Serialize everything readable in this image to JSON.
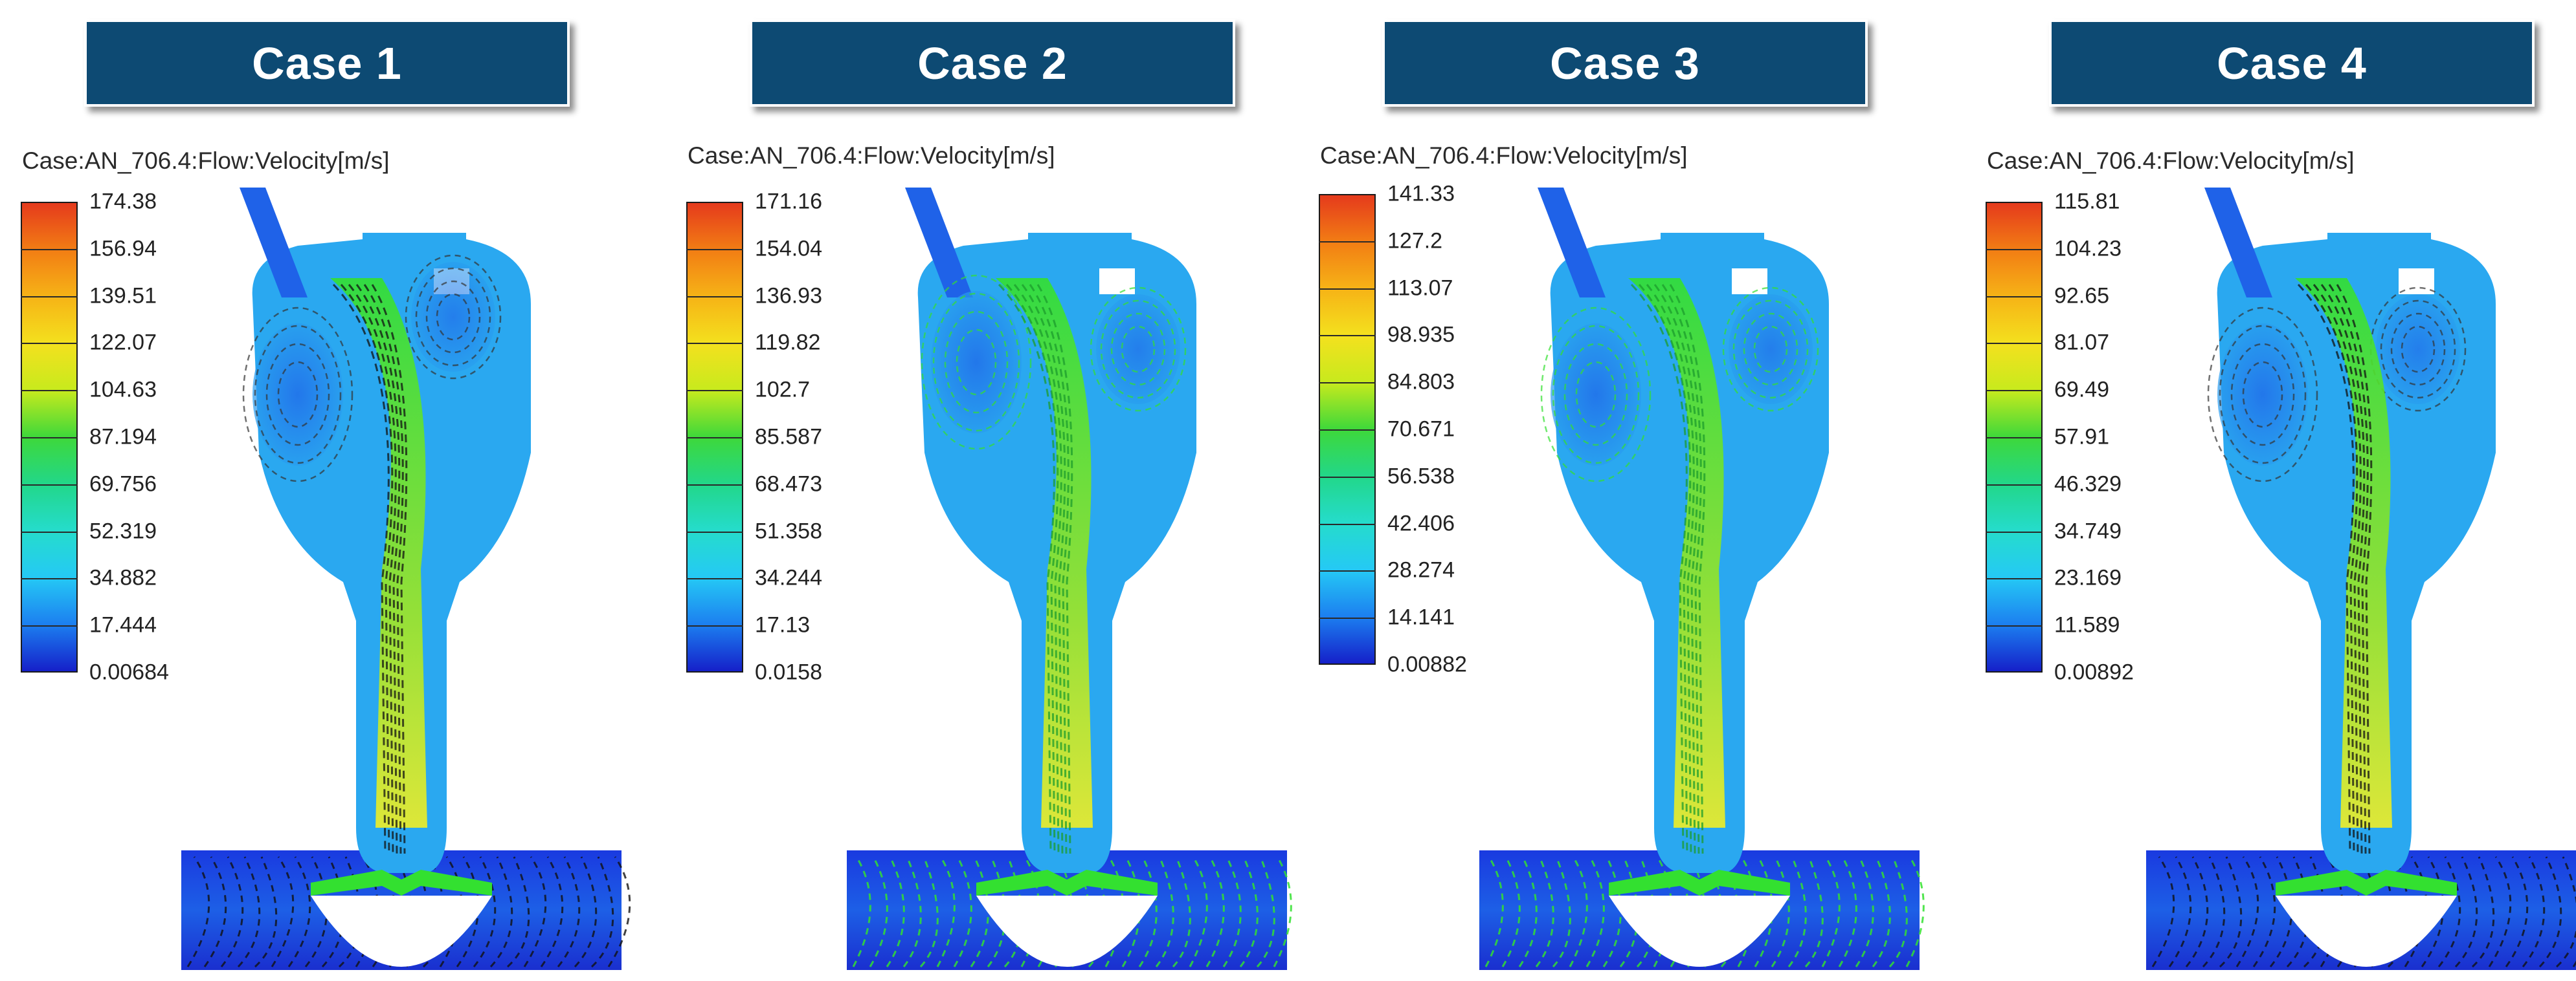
{
  "variable": "Case:AN_706.4:Flow:Velocity[m/s]",
  "panels": [
    {
      "title": "Case 1",
      "ticks": [
        "174.38",
        "156.94",
        "139.51",
        "122.07",
        "104.63",
        "87.194",
        "69.756",
        "52.319",
        "34.882",
        "17.444",
        "0.00684"
      ]
    },
    {
      "title": "Case 2",
      "ticks": [
        "171.16",
        "154.04",
        "136.93",
        "119.82",
        "102.7",
        "85.587",
        "68.473",
        "51.358",
        "34.244",
        "17.13",
        "0.0158"
      ]
    },
    {
      "title": "Case 3",
      "ticks": [
        "141.33",
        "127.2",
        "113.07",
        "98.935",
        "84.803",
        "70.671",
        "56.538",
        "42.406",
        "28.274",
        "14.141",
        "0.00882"
      ]
    },
    {
      "title": "Case 4",
      "ticks": [
        "115.81",
        "104.23",
        "92.65",
        "81.07",
        "69.49",
        "57.91",
        "46.329",
        "34.749",
        "23.169",
        "11.589",
        "0.00892"
      ]
    }
  ],
  "colors": {
    "header_bg": "#0d4a73",
    "header_text": "#ffffff",
    "field_blue": "#2aa8f0",
    "field_green": "#33e030",
    "jet_yellow": "#f1ee25",
    "dark_blue": "#1a3ae0",
    "streamline": "#111111"
  }
}
